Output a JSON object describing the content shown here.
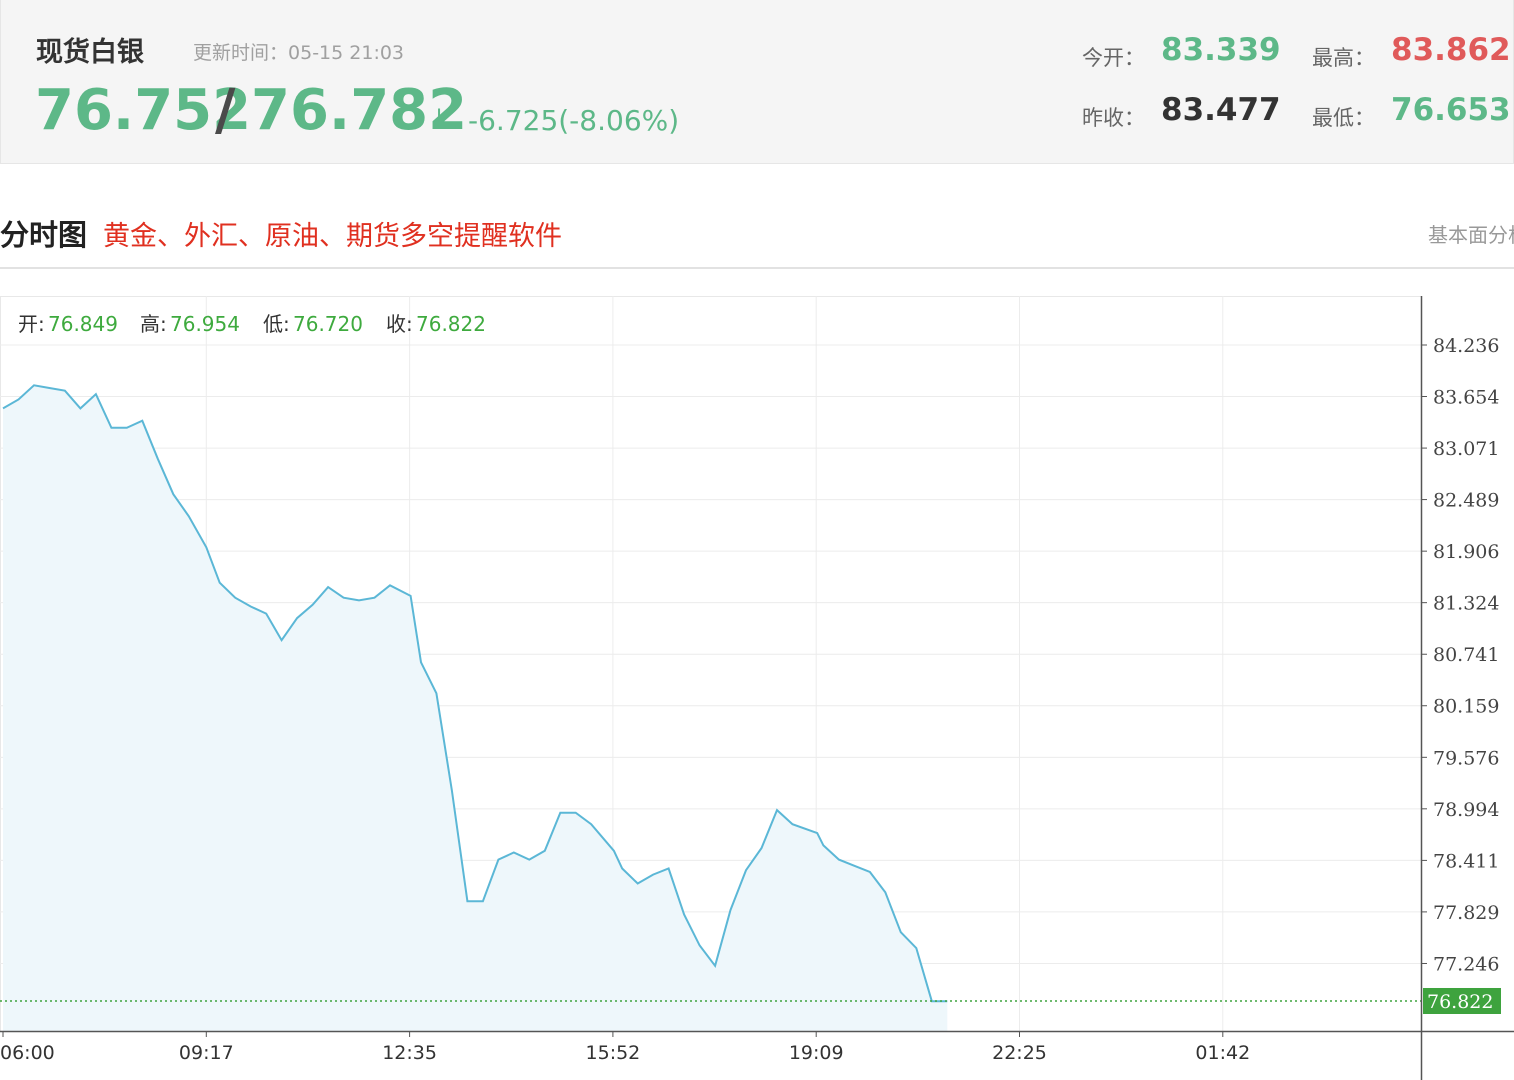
{
  "header": {
    "title": "现货白银",
    "update_label": "更新时间：",
    "update_time": "05-15 21:03",
    "bid": "76.752",
    "separator": "/",
    "ask": "76.782",
    "arrow": "↓",
    "change": "-6.725(-8.06%)",
    "stats": {
      "open_label": "今开：",
      "open": "83.339",
      "high_label": "最高：",
      "high": "83.862",
      "prev_close_label": "昨收：",
      "prev_close": "83.477",
      "low_label": "最低：",
      "low": "76.653"
    }
  },
  "section": {
    "title": "分时图",
    "promo": "黄金、外汇、原油、期货多空提醒软件",
    "right_tab": "基本面分析"
  },
  "colors": {
    "up": "#e05a5a",
    "down": "#5db888",
    "line": "#5bb7d6",
    "area": "#eef7fb",
    "current_price_tag": "#3ea33e",
    "promo": "#e03020"
  },
  "chart_data": {
    "type": "area",
    "ohlc": {
      "open_label": "开:",
      "open": "76.849",
      "high_label": "高:",
      "high": "76.954",
      "low_label": "低:",
      "low": "76.720",
      "close_label": "收:",
      "close": "76.822"
    },
    "x_ticks": [
      "06:00",
      "09:17",
      "12:35",
      "15:52",
      "19:09",
      "22:25",
      "01:42"
    ],
    "y_ticks": [
      "84.236",
      "83.654",
      "83.071",
      "82.489",
      "81.906",
      "81.324",
      "80.741",
      "80.159",
      "79.576",
      "78.994",
      "78.411",
      "77.829",
      "77.246"
    ],
    "current_price": "76.822",
    "ylim": [
      76.7,
      84.75
    ],
    "grid": true,
    "series": [
      {
        "x": [
          "06:00",
          "06:15",
          "06:30",
          "06:45",
          "07:00",
          "07:15",
          "07:30",
          "07:45",
          "08:00",
          "08:15",
          "08:30",
          "08:45",
          "09:00",
          "09:17",
          "09:30",
          "09:45",
          "10:00",
          "10:15",
          "10:30",
          "10:45",
          "11:00",
          "11:15",
          "11:30",
          "11:45",
          "12:00",
          "12:15",
          "12:35",
          "12:45",
          "13:00",
          "13:15",
          "13:30",
          "13:45",
          "14:00",
          "14:15",
          "14:30",
          "14:45",
          "15:00",
          "15:15",
          "15:30",
          "15:52",
          "16:00",
          "16:15",
          "16:30",
          "16:45",
          "17:00",
          "17:15",
          "17:30",
          "17:45",
          "18:00",
          "18:15",
          "18:30",
          "18:45",
          "19:09",
          "19:15",
          "19:30",
          "19:45",
          "20:00",
          "20:15",
          "20:30",
          "20:45",
          "21:00",
          "21:15"
        ],
        "values": [
          83.52,
          83.62,
          83.78,
          83.75,
          83.72,
          83.52,
          83.68,
          83.3,
          83.3,
          83.38,
          82.95,
          82.55,
          82.3,
          81.95,
          81.55,
          81.38,
          81.28,
          81.2,
          80.9,
          81.15,
          81.3,
          81.5,
          81.38,
          81.35,
          81.38,
          81.52,
          81.4,
          80.65,
          80.3,
          79.2,
          77.95,
          77.95,
          78.42,
          78.5,
          78.42,
          78.52,
          78.95,
          78.95,
          78.82,
          78.52,
          78.32,
          78.15,
          78.25,
          78.32,
          77.8,
          77.45,
          77.22,
          77.85,
          78.3,
          78.55,
          78.98,
          78.82,
          78.72,
          78.58,
          78.42,
          78.35,
          78.28,
          78.05,
          77.6,
          77.42,
          76.82,
          76.82
        ]
      }
    ]
  }
}
